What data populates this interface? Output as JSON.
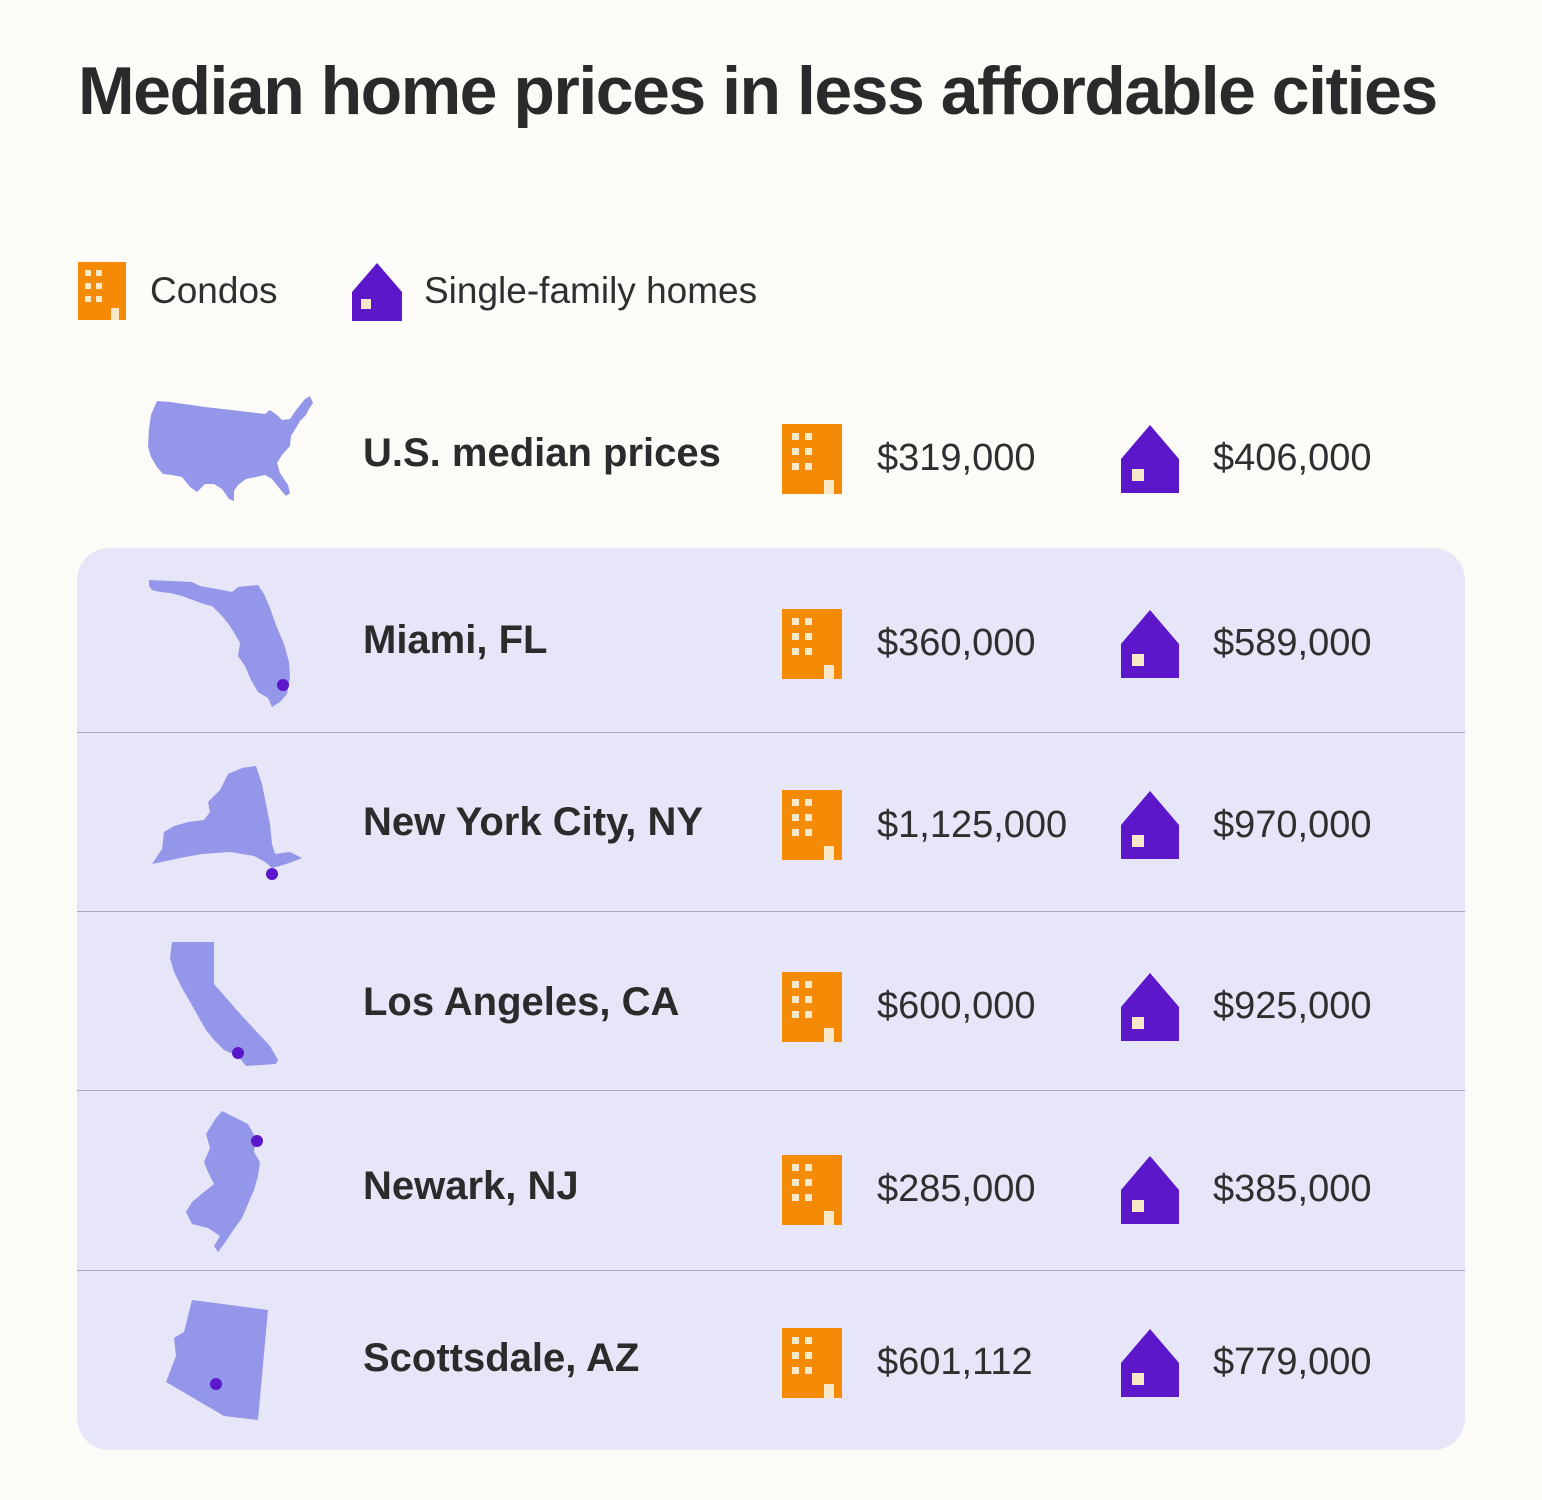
{
  "chart_data": {
    "type": "table",
    "title": "Median home prices in less affordable cities",
    "legend": [
      {
        "name": "Condos",
        "icon": "condo-building-icon",
        "color": "#f58a07"
      },
      {
        "name": "Single-family homes",
        "icon": "house-icon",
        "color": "#5b17c9"
      }
    ],
    "columns": [
      "Condos",
      "Single-family homes"
    ],
    "rows": [
      {
        "location": "U.S. median prices",
        "map_icon": "usa-map-icon",
        "condo_price": "$319,000",
        "home_price": "$406,000",
        "condo_value": 319000,
        "home_value": 406000
      },
      {
        "location": "Miami, FL",
        "map_icon": "florida-map-icon",
        "condo_price": "$360,000",
        "home_price": "$589,000",
        "condo_value": 360000,
        "home_value": 589000
      },
      {
        "location": "New York City, NY",
        "map_icon": "new-york-map-icon",
        "condo_price": "$1,125,000",
        "home_price": "$970,000",
        "condo_value": 1125000,
        "home_value": 970000
      },
      {
        "location": "Los Angeles, CA",
        "map_icon": "california-map-icon",
        "condo_price": "$600,000",
        "home_price": "$925,000",
        "condo_value": 600000,
        "home_value": 925000
      },
      {
        "location": "Newark, NJ",
        "map_icon": "new-jersey-map-icon",
        "condo_price": "$285,000",
        "home_price": "$385,000",
        "condo_value": 285000,
        "home_value": 385000
      },
      {
        "location": "Scottsdale, AZ",
        "map_icon": "arizona-map-icon",
        "condo_price": "$601,112",
        "home_price": "$779,000",
        "condo_value": 601112,
        "home_value": 779000
      }
    ]
  },
  "colors": {
    "background": "#fcfbf7",
    "panel": "#e6e6f8",
    "map": "#9496ea",
    "city_dot": "#5b17c9",
    "condo": "#f58a07",
    "home": "#5b17c9",
    "window": "#f7e9c8"
  }
}
